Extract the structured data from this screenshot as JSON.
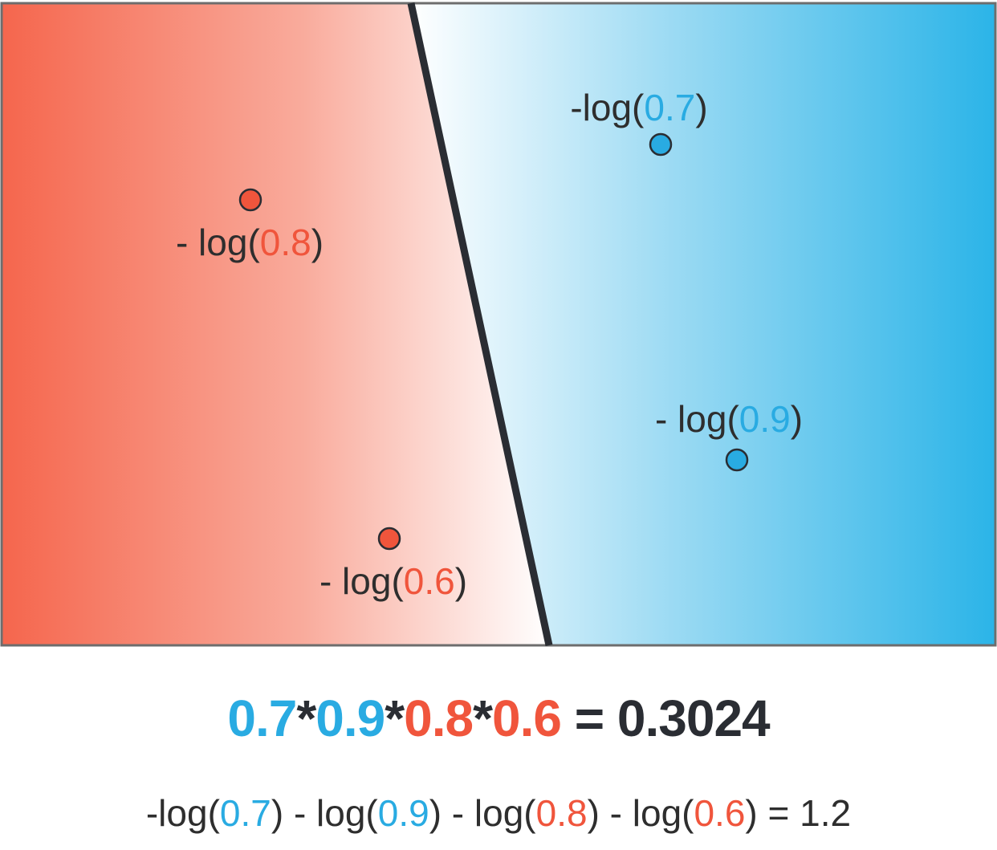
{
  "colors": {
    "blue": "#29abe2",
    "red": "#f0553c",
    "dark": "#2a2d33",
    "red_region": "#f5664d",
    "blue_region": "#2bb4e8"
  },
  "points": {
    "blue_top": {
      "prefix": "-log(",
      "value": "0.7",
      "suffix": ")"
    },
    "blue_bottom": {
      "prefix": "- log(",
      "value": "0.9",
      "suffix": ")"
    },
    "red_top": {
      "prefix": "- log(",
      "value": "0.8",
      "suffix": ")"
    },
    "red_bottom": {
      "prefix": "- log(",
      "value": "0.6",
      "suffix": ")"
    }
  },
  "product": {
    "v1": "0.7",
    "op1": "*",
    "v2": "0.9",
    "op2": "*",
    "v3": "0.8",
    "op3": "*",
    "v4": "0.6",
    "equals": " = 0.3024"
  },
  "log_sum": {
    "t1_pre": "-log(",
    "t1_val": "0.7",
    "t1_post": ") - log(",
    "t2_val": "0.9",
    "t2_post": ") - log(",
    "t3_val": "0.8",
    "t3_post": ") - log(",
    "t4_val": "0.6",
    "t4_post": ") = 1.2"
  }
}
